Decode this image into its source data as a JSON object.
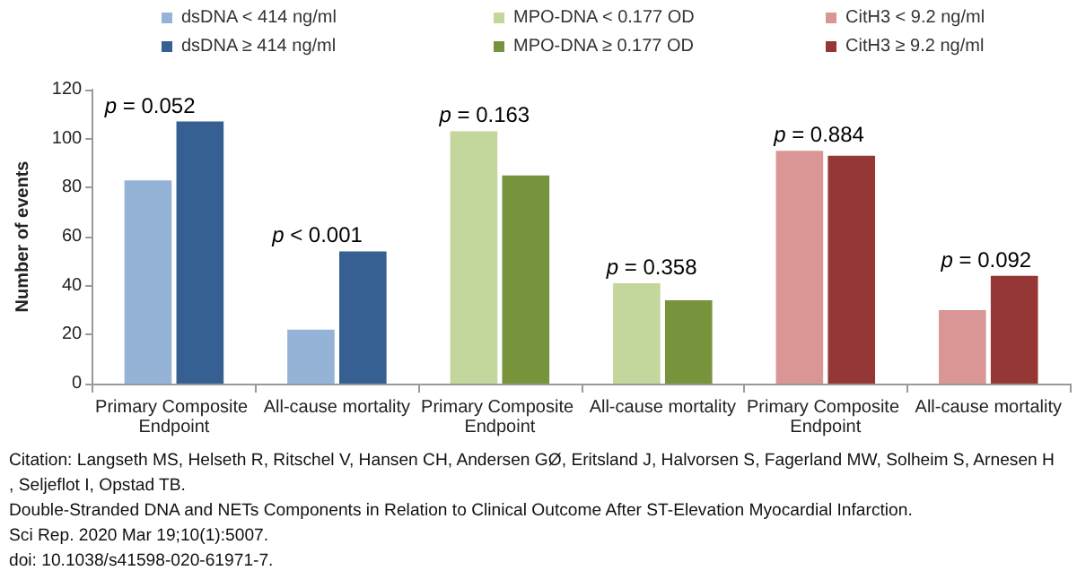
{
  "chart_data": {
    "type": "bar",
    "ylabel": "Number of events",
    "categories": [
      "Primary Composite Endpoint",
      "All-cause mortality",
      "Primary Composite Endpoint",
      "All-cause mortality",
      "Primary Composite Endpoint",
      "All-cause mortality"
    ],
    "series": [
      {
        "name": "dsDNA < 414 ng/ml",
        "color": "#95b3d7",
        "values": [
          83,
          22,
          null,
          null,
          null,
          null
        ]
      },
      {
        "name": "dsDNA ≥ 414 ng/ml",
        "color": "#376092",
        "values": [
          107,
          54,
          null,
          null,
          null,
          null
        ]
      },
      {
        "name": "MPO-DNA < 0.177 OD",
        "color": "#c3d69b",
        "values": [
          null,
          null,
          103,
          41,
          null,
          null
        ]
      },
      {
        "name": "MPO-DNA ≥ 0.177 OD",
        "color": "#77933c",
        "values": [
          null,
          null,
          85,
          34,
          null,
          null
        ]
      },
      {
        "name": "CitH3 < 9.2 ng/ml",
        "color": "#d99694",
        "values": [
          null,
          null,
          null,
          null,
          95,
          30
        ]
      },
      {
        "name": "CitH3 ≥ 9.2 ng/ml",
        "color": "#953735",
        "values": [
          null,
          null,
          null,
          null,
          93,
          44
        ]
      }
    ],
    "ylim": [
      0,
      120
    ],
    "yticks": [
      0,
      20,
      40,
      60,
      80,
      100,
      120
    ],
    "grid": false,
    "legend": "top",
    "annotations": [
      "p = 0.052",
      "p < 0.001",
      "p = 0.163",
      "p = 0.358",
      "p = 0.884",
      "p = 0.092",
      "Citation: Langseth MS, Helseth R, Ritschel V, Hansen CH, Andersen GØ, Eritsland J, Halvorsen S, Fagerland MW, Solheim S, Arnesen H, Seljeflot I, Opstad TB.",
      "Double-Stranded DNA and NETs Components in Relation to Clinical Outcome After ST-Elevation Myocardial Infarction.",
      "Sci Rep. 2020 Mar 19;10(1):5007.",
      "doi: 10.1038/s41598-020-61971-7."
    ]
  }
}
